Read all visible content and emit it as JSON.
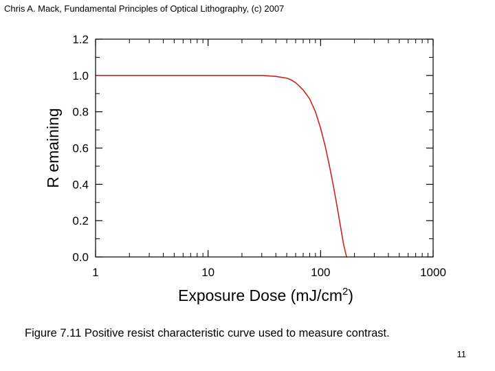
{
  "header": "Chris A. Mack, Fundamental Principles of Optical Lithography, (c) 2007",
  "caption": "Figure 7.11  Positive resist characteristic curve used to measure contrast.",
  "page_number": "11",
  "chart_data": {
    "type": "line",
    "title": "",
    "xlabel": "Exposure Dose (mJ/cm",
    "xlabel_superscript": "2",
    "xlabel_suffix": ")",
    "ylabel": "R emaining",
    "x_scale": "log",
    "xlim": [
      1,
      1000
    ],
    "ylim": [
      0,
      1.2
    ],
    "x_ticks": [
      1,
      10,
      100,
      1000
    ],
    "x_tick_labels": [
      "1",
      "10",
      "100",
      "1000"
    ],
    "y_ticks": [
      0.0,
      0.2,
      0.4,
      0.6,
      0.8,
      1.0,
      1.2
    ],
    "y_tick_labels": [
      "0.0",
      "0.2",
      "0.4",
      "0.6",
      "0.8",
      "1.0",
      "1.2"
    ],
    "grid": false,
    "series": [
      {
        "color": "#cc2222",
        "x": [
          1,
          5,
          10,
          20,
          30,
          40,
          50,
          55,
          60,
          65,
          70,
          75,
          80,
          90,
          100,
          110,
          120,
          130,
          140,
          150,
          160,
          170
        ],
        "y": [
          1.0,
          1.0,
          1.0,
          1.0,
          1.0,
          0.995,
          0.985,
          0.975,
          0.96,
          0.94,
          0.92,
          0.895,
          0.87,
          0.8,
          0.71,
          0.61,
          0.5,
          0.39,
          0.28,
          0.17,
          0.07,
          0.0
        ]
      }
    ]
  }
}
